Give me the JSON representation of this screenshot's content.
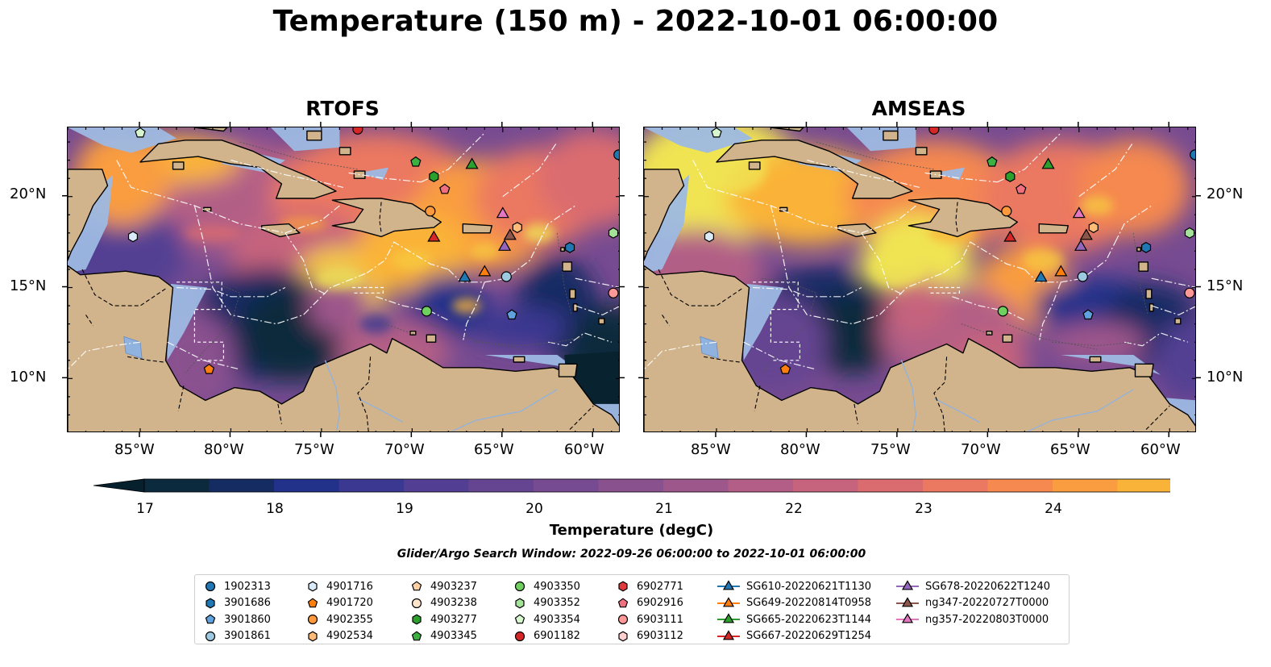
{
  "title": "Temperature (150 m) - 2022-10-01 06:00:00",
  "panels": [
    {
      "title": "RTOFS",
      "variant": "rtofs"
    },
    {
      "title": "AMSEAS",
      "variant": "amseas"
    }
  ],
  "map_extent": {
    "lon_min": -89,
    "lon_max": -58.5,
    "lat_min": 7,
    "lat_max": 23.8
  },
  "y_ticks": [
    "20°N",
    "15°N",
    "10°N"
  ],
  "x_ticks": [
    "85°W",
    "80°W",
    "75°W",
    "70°W",
    "65°W",
    "60°W"
  ],
  "colorbar": {
    "label": "Temperature (degC)",
    "min": 17,
    "max": 24.5,
    "step": 0.5,
    "extend": "both",
    "ticks": [
      "17",
      "18",
      "19",
      "20",
      "21",
      "22",
      "23",
      "24"
    ],
    "colors": [
      "#0c2a3d",
      "#152c63",
      "#22318a",
      "#3a3891",
      "#523f93",
      "#654592",
      "#774b91",
      "#8a518f",
      "#9d578b",
      "#b25e86",
      "#c6647d",
      "#da6c70",
      "#eb7861",
      "#f58950",
      "#f99d40",
      "#fab339",
      "#f7cb3f",
      "#f0e452"
    ],
    "under_color": "#07202e",
    "over_color": "#f7f85c"
  },
  "colors": {
    "land": "#d2b48c",
    "shallow": "#9db9e3",
    "deep_cold": "#08222f"
  },
  "search_window": "Glider/Argo Search Window: 2022-09-26 06:00:00 to 2022-10-01 06:00:00",
  "legend": [
    {
      "label": "1902313",
      "marker": "circle",
      "color": "#1f77b4"
    },
    {
      "label": "3901686",
      "marker": "hexagon",
      "color": "#1f77b4"
    },
    {
      "label": "3901860",
      "marker": "pentagon",
      "color": "#5fa2dd"
    },
    {
      "label": "3901861",
      "marker": "circle",
      "color": "#9ecae1"
    },
    {
      "label": "4901716",
      "marker": "hexagon",
      "color": "#dbeaf7"
    },
    {
      "label": "4901720",
      "marker": "pentagon",
      "color": "#ff7f0e"
    },
    {
      "label": "4902355",
      "marker": "circle",
      "color": "#ff9a3c"
    },
    {
      "label": "4902534",
      "marker": "hexagon",
      "color": "#ffbb78"
    },
    {
      "label": "4903237",
      "marker": "pentagon",
      "color": "#ffd2a6"
    },
    {
      "label": "4903238",
      "marker": "circle",
      "color": "#ffe5cc"
    },
    {
      "label": "4903277",
      "marker": "hexagon",
      "color": "#2ca02c"
    },
    {
      "label": "4903345",
      "marker": "pentagon",
      "color": "#3cb043"
    },
    {
      "label": "4903350",
      "marker": "circle",
      "color": "#6fcf5f"
    },
    {
      "label": "4903352",
      "marker": "hexagon",
      "color": "#a6e39a"
    },
    {
      "label": "4903354",
      "marker": "pentagon",
      "color": "#d7f5cf"
    },
    {
      "label": "6901182",
      "marker": "circle",
      "color": "#d62728"
    },
    {
      "label": "6902771",
      "marker": "hexagon",
      "color": "#e0393e"
    },
    {
      "label": "6902916",
      "marker": "pentagon",
      "color": "#f07080"
    },
    {
      "label": "6903111",
      "marker": "circle",
      "color": "#ff9896"
    },
    {
      "label": "6903112",
      "marker": "hexagon",
      "color": "#ffd0cf"
    },
    {
      "label": "SG610-20220621T1130",
      "marker": "triangle",
      "color": "#1f77b4",
      "track": true
    },
    {
      "label": "SG649-20220814T0958",
      "marker": "triangle",
      "color": "#ff7f0e",
      "track": true
    },
    {
      "label": "SG665-20220623T1144",
      "marker": "triangle",
      "color": "#2ca02c",
      "track": true
    },
    {
      "label": "SG667-20220629T1254",
      "marker": "triangle",
      "color": "#d62728",
      "track": true
    },
    {
      "label": "SG678-20220622T1240",
      "marker": "triangle",
      "color": "#9467bd",
      "track": true
    },
    {
      "label": "ng347-20220727T0000",
      "marker": "triangle",
      "color": "#8c564b",
      "track": true
    },
    {
      "label": "ng357-20220803T0000",
      "marker": "triangle",
      "color": "#e377c2",
      "track": true
    }
  ],
  "observations": [
    {
      "id": "1902313",
      "lon": -58.6,
      "lat": 22.3
    },
    {
      "id": "3901686",
      "lon": -61.3,
      "lat": 17.2
    },
    {
      "id": "3901861",
      "lon": -64.8,
      "lat": 15.6
    },
    {
      "id": "3901860",
      "lon": -64.5,
      "lat": 13.5
    },
    {
      "id": "4901716",
      "lon": -85.4,
      "lat": 17.8
    },
    {
      "id": "4901720",
      "lon": -81.2,
      "lat": 10.5
    },
    {
      "id": "4902355",
      "lon": -69.0,
      "lat": 19.2
    },
    {
      "id": "4902534",
      "lon": -64.2,
      "lat": 18.3
    },
    {
      "id": "4903277",
      "lon": -68.8,
      "lat": 21.1
    },
    {
      "id": "4903345",
      "lon": -69.8,
      "lat": 21.9
    },
    {
      "id": "4903350",
      "lon": -69.2,
      "lat": 13.7
    },
    {
      "id": "4903352",
      "lon": -58.9,
      "lat": 18.0
    },
    {
      "id": "4903354",
      "lon": -85.0,
      "lat": 23.5
    },
    {
      "id": "6901182",
      "lon": -73.0,
      "lat": 23.7
    },
    {
      "id": "6902916",
      "lon": -68.2,
      "lat": 20.4
    },
    {
      "id": "6903111",
      "lon": -58.9,
      "lat": 14.7
    },
    {
      "id": "SG610-20220621T1130",
      "lon": -67.1,
      "lat": 15.6
    },
    {
      "id": "SG649-20220814T0958",
      "lon": -66.0,
      "lat": 15.9
    },
    {
      "id": "SG665-20220623T1144",
      "lon": -66.7,
      "lat": 21.8
    },
    {
      "id": "SG667-20220629T1254",
      "lon": -68.8,
      "lat": 17.8
    },
    {
      "id": "SG678-20220622T1240",
      "lon": -64.9,
      "lat": 17.3
    },
    {
      "id": "ng347-20220727T0000",
      "lon": -64.6,
      "lat": 17.9
    },
    {
      "id": "ng357-20220803T0000",
      "lon": -65.0,
      "lat": 19.1
    }
  ]
}
